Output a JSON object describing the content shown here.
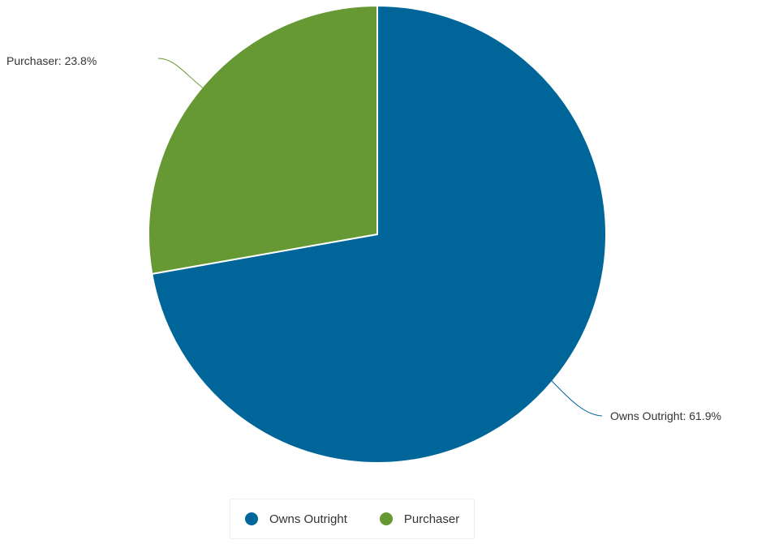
{
  "chart_data": {
    "type": "pie",
    "slices": [
      {
        "name": "Owns Outright",
        "label": "Owns Outright: 61.9%",
        "value": 61.9,
        "color": "#006699"
      },
      {
        "name": "Purchaser",
        "label": "Purchaser: 23.8%",
        "value": 23.8,
        "color": "#669933"
      }
    ],
    "legend_position": "bottom"
  },
  "legend": {
    "items": [
      {
        "label": "Owns Outright",
        "color": "#006699"
      },
      {
        "label": "Purchaser",
        "color": "#669933"
      }
    ]
  }
}
